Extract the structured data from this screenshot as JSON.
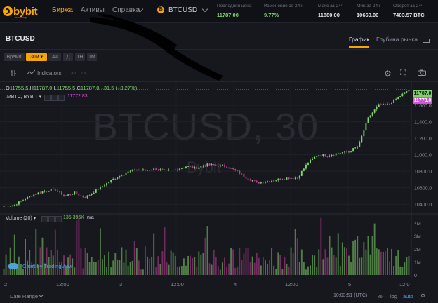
{
  "app": {
    "logo_text": "bybit",
    "logo_sub": "exchange"
  },
  "topbar": {
    "nav": [
      "Биржа",
      "Активы",
      "Справка"
    ],
    "symbol": "BTCUSD",
    "coin_badge": "₿",
    "stats": [
      {
        "label": "Последняя цена",
        "value": "11787.00",
        "color": "#7fd36a"
      },
      {
        "label": "Изменение за 24ч",
        "value": "9.77%",
        "color": "#7fd36a"
      },
      {
        "label": "Макс за 24ч",
        "value": "11880.00",
        "color": "#e4e6ea"
      },
      {
        "label": "Мин за 24ч",
        "value": "10660.00",
        "color": "#e4e6ea"
      },
      {
        "label": "Оборот за 24ч",
        "value": "7403.57 BTC",
        "color": "#e4e6ea"
      }
    ]
  },
  "panel": {
    "title": "BTCUSD",
    "tabs": [
      "График",
      "Глубина рынка"
    ]
  },
  "intervals": {
    "label": "Время",
    "active": "30м",
    "items": [
      "4ч",
      "Д",
      "1Н",
      "1М"
    ]
  },
  "toolbar": {
    "indicators": "Indicators",
    "undo": "↶",
    "redo": "↷",
    "gear": "⚙",
    "fullscreen": "⛶"
  },
  "legend": {
    "ohlc": {
      "o": "11755.5",
      "h": "11787.0",
      "l": "11755.5",
      "c": "11787.0",
      "chg": "+31.5 (+0.27%)"
    },
    "index_label": ".MBTC, BYBIT",
    "index_value": "11772.83",
    "volume_label": "Volume (20)",
    "volume_value": "135.396K",
    "volume_extra": "n/a"
  },
  "watermark": {
    "symbol": "BTCUSD, 30",
    "brand": "Bybit"
  },
  "price_tags": {
    "last": "11787.0",
    "index": "11773.0"
  },
  "colors": {
    "up": "#7fd36a",
    "down": "#c23d9a",
    "accent": "#f7a600",
    "index": "#d84fd8"
  },
  "tv_badge": "Chart by TradingView",
  "time_axis": [
    "2",
    "12:00",
    "3",
    "12:00",
    "4",
    "12:00",
    "5",
    "12:0"
  ],
  "bottom": {
    "date_range": "Date Range",
    "clock": "10:03:51 (UTC)",
    "pct": "%",
    "log": "log",
    "auto": "auto",
    "gear": "⚙"
  },
  "chart_data": {
    "type": "candlestick",
    "y_axis_ticks": [
      10400,
      10600,
      10800,
      11000,
      11200,
      11400,
      11600
    ],
    "y_axis_labels": [
      "11600.0",
      "11400.0",
      "11200.0",
      "11000.0",
      "10800.0",
      "10600.0",
      "10400.0"
    ],
    "ylim": [
      10300,
      11830
    ],
    "volume_axis_labels": [
      "4M",
      "3M",
      "2M",
      "1M",
      "0"
    ],
    "volume_ylim": [
      0,
      4.6
    ],
    "x_ticks": [
      "2",
      "12:00",
      "3",
      "12:00",
      "4",
      "12:00",
      "5",
      "12:00"
    ],
    "candle_count": 190,
    "closes_anchor": [
      10380,
      10390,
      10460,
      10520,
      10560,
      10580,
      10500,
      10540,
      10480,
      10560,
      10640,
      10720,
      10780,
      10820,
      10810,
      10830,
      10800,
      10820,
      10860,
      10840,
      10880,
      10870,
      10860,
      10800,
      10720,
      10660,
      10680,
      10700,
      10720,
      10720,
      10900,
      11000,
      10990,
      11020,
      11040,
      11100,
      11450,
      11600,
      11610,
      11700,
      11787
    ]
  }
}
